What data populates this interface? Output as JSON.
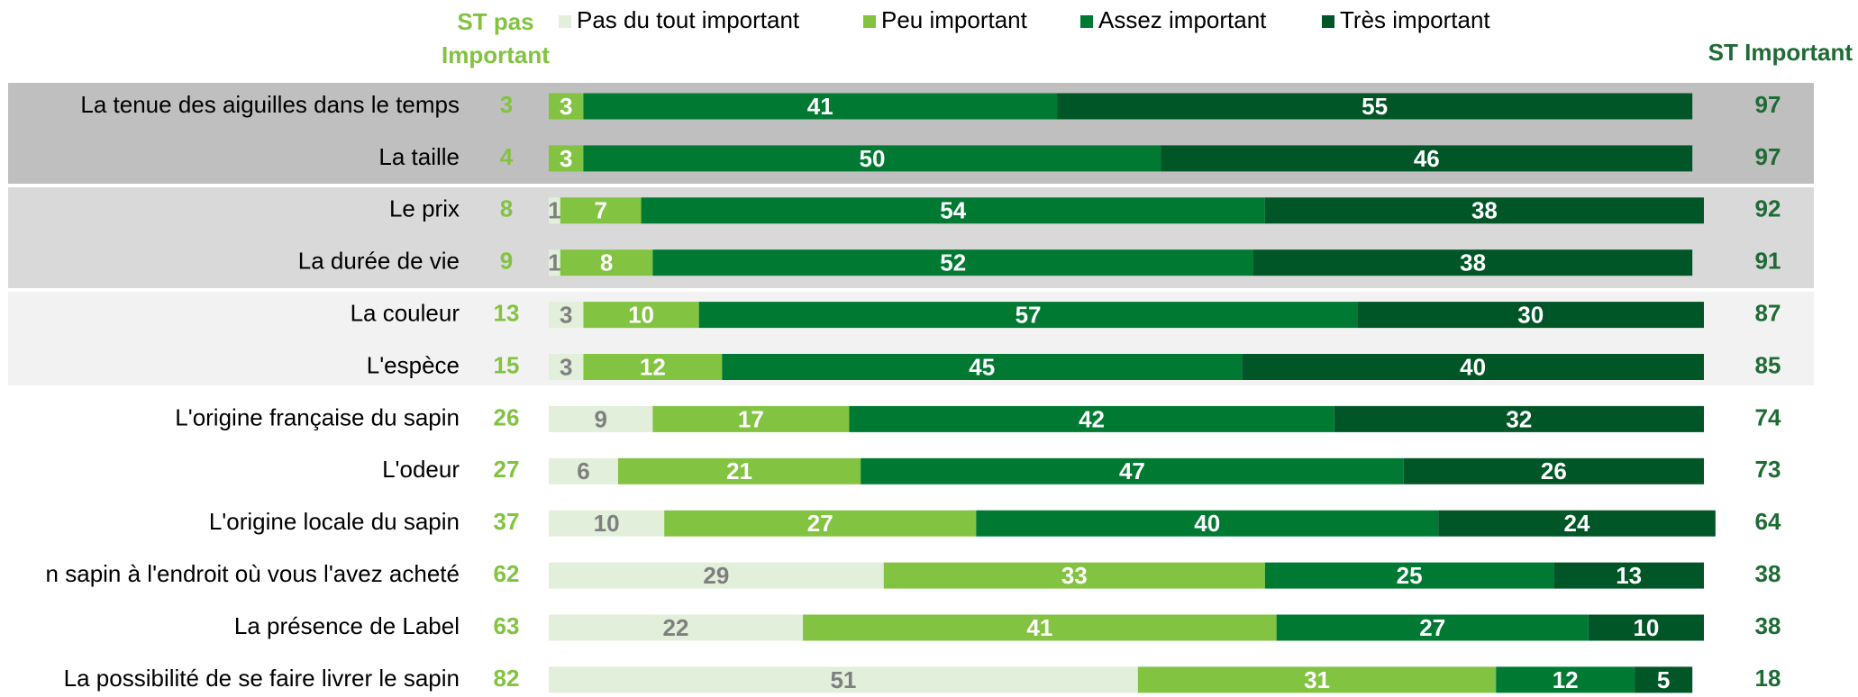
{
  "chart_data": {
    "type": "stacked-bar",
    "orientation": "horizontal",
    "left_header_lines": [
      "ST pas",
      "Important"
    ],
    "right_header": "ST Important",
    "categories": [
      "La tenue des aiguilles dans le temps",
      "La taille",
      "Le prix",
      "La durée de vie",
      "La couleur",
      "L'espèce",
      "L'origine française du sapin",
      "L'odeur",
      "L'origine locale du sapin",
      "n sapin à l'endroit où vous l'avez acheté",
      "La présence de Label",
      "La possibilité de se faire livrer le sapin"
    ],
    "series": [
      {
        "name": "Pas du tout important",
        "color": "#e2efda",
        "label_color": "#7f7f7f",
        "values": [
          null,
          null,
          1,
          1,
          3,
          3,
          9,
          6,
          10,
          29,
          22,
          51
        ]
      },
      {
        "name": "Peu important",
        "color": "#82c341",
        "label_color": "#ffffff",
        "values": [
          3,
          3,
          7,
          8,
          10,
          12,
          17,
          21,
          27,
          33,
          41,
          31
        ]
      },
      {
        "name": "Assez important",
        "color": "#007a33",
        "label_color": "#ffffff",
        "values": [
          41,
          50,
          54,
          52,
          57,
          45,
          42,
          47,
          40,
          25,
          27,
          12
        ]
      },
      {
        "name": "Très important",
        "color": "#005627",
        "label_color": "#ffffff",
        "values": [
          55,
          46,
          38,
          38,
          30,
          40,
          32,
          26,
          24,
          13,
          10,
          5
        ]
      }
    ],
    "st_pas_values": [
      3,
      4,
      8,
      9,
      13,
      15,
      26,
      27,
      37,
      62,
      63,
      82
    ],
    "st_important_values": [
      97,
      97,
      92,
      91,
      87,
      85,
      74,
      73,
      64,
      38,
      38,
      18
    ],
    "xlim": [
      0,
      100
    ]
  }
}
